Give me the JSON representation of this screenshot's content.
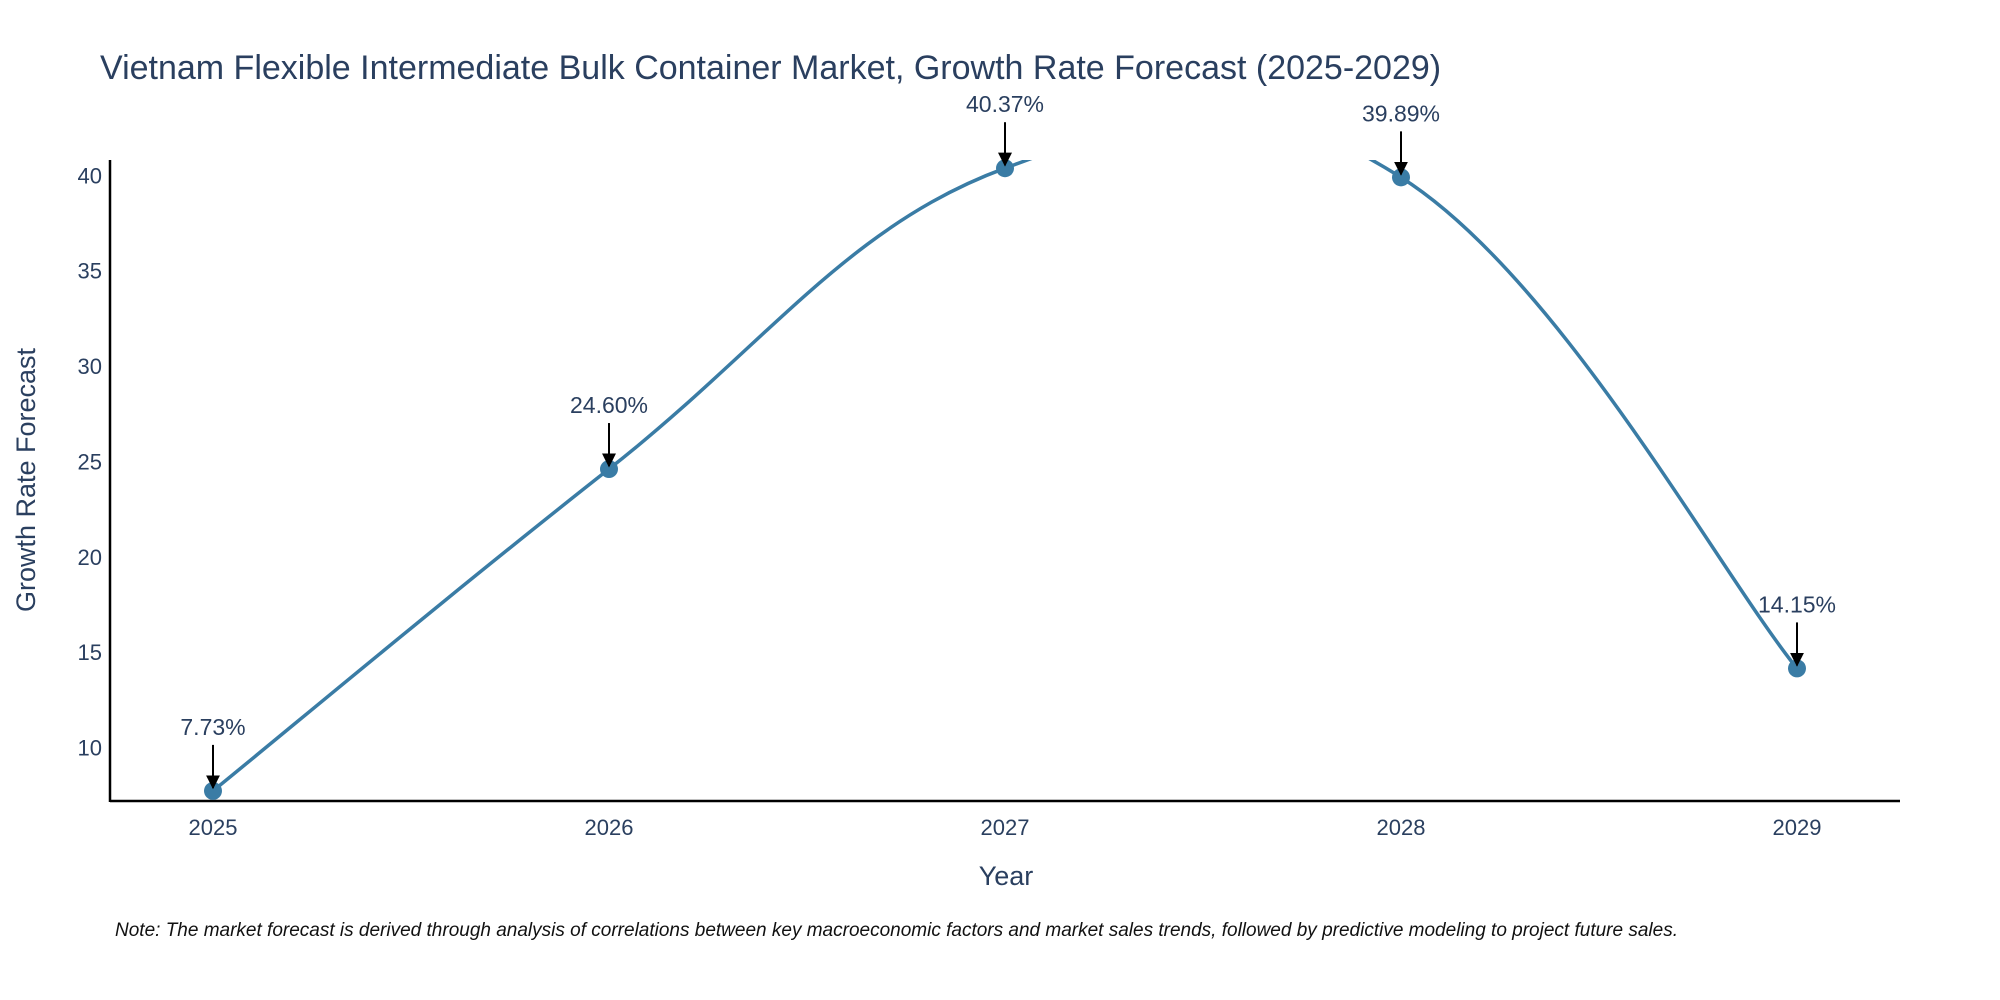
{
  "chart_data": {
    "type": "line",
    "title": "Vietnam Flexible Intermediate Bulk Container Market, Growth Rate Forecast (2025-2029)",
    "xlabel": "Year",
    "ylabel": "Growth Rate Forecast",
    "categories": [
      "2025",
      "2026",
      "2027",
      "2028",
      "2029"
    ],
    "values": [
      7.73,
      24.6,
      40.37,
      39.89,
      14.15
    ],
    "data_labels": [
      "7.73%",
      "24.60%",
      "40.37%",
      "39.89%",
      "14.15%"
    ],
    "ylim": [
      7.2,
      40.8
    ],
    "yticks": [
      10,
      15,
      20,
      25,
      30,
      35,
      40
    ],
    "grid": false,
    "line_color": "#3a7ca5",
    "marker_color": "#3a7ca5",
    "axis_color": "#000000"
  },
  "note": "Note: The market forecast is derived through analysis of correlations between key macroeconomic factors and market sales trends, followed by predictive modeling to project future sales."
}
